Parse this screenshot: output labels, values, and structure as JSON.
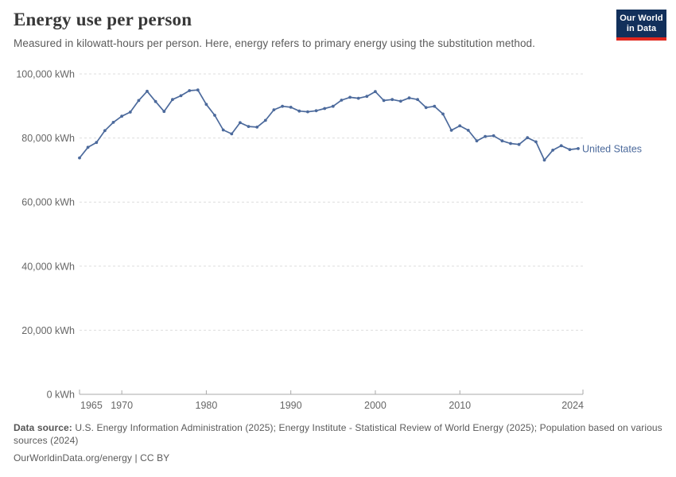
{
  "header": {
    "title": "Energy use per person",
    "subtitle": "Measured in kilowatt-hours per person. Here, energy refers to primary energy using the substitution method.",
    "logo": {
      "line1": "Our World",
      "line2": "in Data"
    }
  },
  "chart_data": {
    "type": "line",
    "title": "Energy use per person",
    "unit": "kWh",
    "xlabel": "",
    "ylabel": "",
    "xlim": [
      1965,
      2024
    ],
    "ylim": [
      0,
      100000
    ],
    "grid": "horizontal-dashed",
    "legend_position": "end-of-line-label",
    "x_tick_labels": [
      "1965",
      "1970",
      "1980",
      "1990",
      "2000",
      "2010",
      "2024"
    ],
    "x_tick_years": [
      1965,
      1970,
      1980,
      1990,
      2000,
      2010,
      2024
    ],
    "y_ticks": [
      {
        "value": 0,
        "label": "0 kWh"
      },
      {
        "value": 20000,
        "label": "20,000 kWh"
      },
      {
        "value": 40000,
        "label": "40,000 kWh"
      },
      {
        "value": 60000,
        "label": "60,000 kWh"
      },
      {
        "value": 80000,
        "label": "80,000 kWh"
      },
      {
        "value": 100000,
        "label": "100,000 kWh"
      }
    ],
    "series": [
      {
        "name": "United States",
        "color": "#4C6A9C",
        "years": [
          1965,
          1966,
          1967,
          1968,
          1969,
          1970,
          1971,
          1972,
          1973,
          1974,
          1975,
          1976,
          1977,
          1978,
          1979,
          1980,
          1981,
          1982,
          1983,
          1984,
          1985,
          1986,
          1987,
          1988,
          1989,
          1990,
          1991,
          1992,
          1993,
          1994,
          1995,
          1996,
          1997,
          1998,
          1999,
          2000,
          2001,
          2002,
          2003,
          2004,
          2005,
          2006,
          2007,
          2008,
          2009,
          2010,
          2011,
          2012,
          2013,
          2014,
          2015,
          2016,
          2017,
          2018,
          2019,
          2020,
          2021,
          2022,
          2023,
          2024
        ],
        "values": [
          73800,
          77100,
          78600,
          82300,
          84900,
          86800,
          88100,
          91700,
          94600,
          91400,
          88300,
          92000,
          93200,
          94800,
          95000,
          90500,
          87100,
          82500,
          81300,
          84800,
          83600,
          83400,
          85500,
          88800,
          89900,
          89600,
          88400,
          88200,
          88500,
          89200,
          89900,
          91800,
          92700,
          92400,
          93000,
          94500,
          91700,
          92000,
          91500,
          92500,
          92000,
          89500,
          89900,
          87500,
          82400,
          83800,
          82400,
          79100,
          80500,
          80700,
          79100,
          78300,
          78000,
          80100,
          78800,
          73100,
          76200,
          77600,
          76400,
          76700
        ]
      }
    ]
  },
  "footer": {
    "data_source_label": "Data source:",
    "data_source_text": " U.S. Energy Information Administration (2025); Energy Institute - Statistical Review of World Energy (2025); Population based on various sources (2024)",
    "link_line": "OurWorldinData.org/energy | CC BY"
  },
  "colors": {
    "line": "#4C6A9C",
    "series_label": "#4C6A9C",
    "gridline": "#dedede",
    "axis": "#a8a8a8",
    "tick_text": "#666666",
    "logo_navy": "#12305B",
    "logo_red": "#E0271E"
  }
}
